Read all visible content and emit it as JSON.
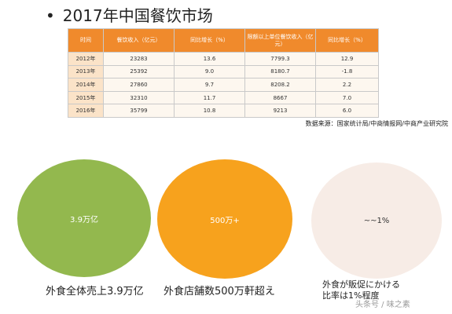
{
  "slide": {
    "title": "2017年中国餐饮市场",
    "bullet": "•"
  },
  "table": {
    "headers": [
      "时间",
      "餐饮收入（亿元）",
      "同比增长（%）",
      "限额以上单位餐饮收入（亿元）",
      "同比增长（%）"
    ],
    "rows": [
      [
        "2012年",
        "23283",
        "13.6",
        "7799.3",
        "12.9"
      ],
      [
        "2013年",
        "25392",
        "9.0",
        "8180.7",
        "-1.8"
      ],
      [
        "2014年",
        "27860",
        "9.7",
        "8208.2",
        "2.2"
      ],
      [
        "2015年",
        "32310",
        "11.7",
        "8667",
        "7.0"
      ],
      [
        "2016年",
        "35799",
        "10.8",
        "9213",
        "6.0"
      ]
    ]
  },
  "source": "数据来源：国家统计局/中商情报网/中商产业研究院",
  "circles": [
    {
      "label": "3.9万亿",
      "caption": "外食全体売上3.9万亿",
      "color": "#93b84e"
    },
    {
      "label": "500万+",
      "caption": "外食店舗数500万軒超え",
      "color": "#f7a21d"
    },
    {
      "label": "~~1%",
      "caption_line1": "外食が販促にかける",
      "caption_line2": "比率は1%程度",
      "color": "#f7ece6"
    }
  ],
  "watermark": "头条号 / 味之素"
}
